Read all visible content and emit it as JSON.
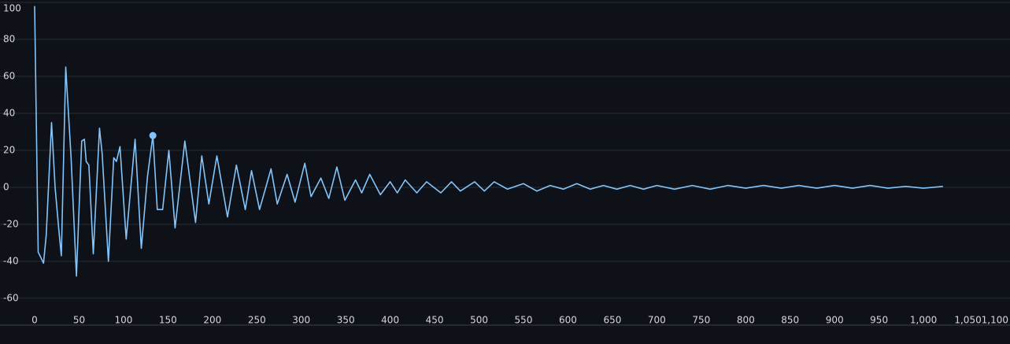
{
  "chart_data": {
    "type": "line",
    "x": [
      0,
      4,
      10,
      13,
      19,
      23,
      27,
      30,
      35,
      41,
      47,
      53,
      56,
      58,
      61,
      66,
      73,
      76,
      83,
      89,
      92,
      96,
      103,
      113,
      120,
      127,
      133,
      138,
      144,
      151,
      158,
      169,
      181,
      188,
      196,
      205,
      217,
      227,
      237,
      244,
      253,
      266,
      273,
      284,
      293,
      304,
      311,
      322,
      331,
      340,
      349,
      361,
      368,
      377,
      389,
      400,
      408,
      417,
      430,
      441,
      457,
      469,
      479,
      495,
      506,
      517,
      532,
      550,
      565,
      580,
      595,
      610,
      625,
      640,
      655,
      670,
      685,
      700,
      720,
      740,
      760,
      780,
      800,
      820,
      840,
      860,
      880,
      900,
      920,
      940,
      960,
      980,
      1000,
      1022
    ],
    "series": [
      {
        "color": "#83c5fb",
        "values": [
          98,
          -35,
          -41,
          -26,
          35,
          0,
          -22,
          -37,
          65,
          16,
          -48,
          25,
          26,
          14,
          12,
          -36,
          32,
          18,
          -40,
          16,
          14,
          22,
          -28,
          26,
          -33,
          6,
          28,
          -12,
          -12,
          20,
          -22,
          25,
          -19,
          17,
          -9,
          17,
          -16,
          12,
          -12,
          9,
          -12,
          10,
          -9,
          7,
          -8,
          13,
          -5,
          5,
          -6,
          11,
          -7,
          4,
          -3,
          7,
          -4,
          3,
          -3,
          4,
          -3,
          3,
          -3,
          3,
          -2,
          3,
          -2,
          3,
          -1,
          2,
          -2,
          1,
          -1,
          2,
          -1,
          1,
          -1,
          1,
          -1,
          1,
          -1,
          1,
          -1,
          1,
          -0.5,
          1,
          -0.5,
          1,
          -0.5,
          1,
          -0.5,
          1,
          -0.5,
          0.5,
          -0.5,
          0.5
        ]
      }
    ],
    "marker": {
      "x": 133,
      "y": 28
    },
    "xlim": [
      0,
      1100
    ],
    "ylim": [
      -74.5,
      100
    ],
    "xticks": [
      0,
      50,
      100,
      150,
      200,
      250,
      300,
      350,
      400,
      450,
      500,
      550,
      600,
      650,
      700,
      750,
      800,
      850,
      900,
      950,
      {
        "value": 1000,
        "label": "1,000"
      },
      {
        "value": 1050,
        "label": "1,050"
      },
      {
        "value": 1100,
        "label": "1,100"
      }
    ],
    "yticks": [
      -60,
      -40,
      -20,
      0,
      20,
      40,
      60,
      80,
      100
    ],
    "grid": true
  }
}
